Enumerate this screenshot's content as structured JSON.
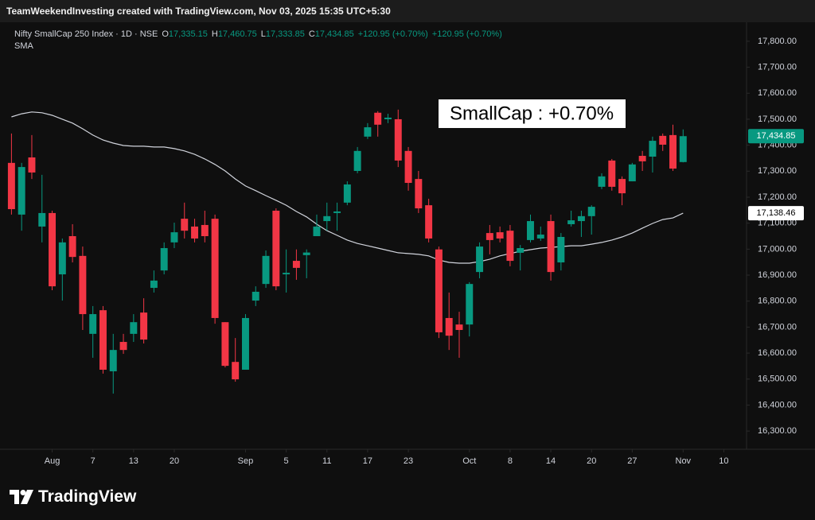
{
  "header": "TeamWeekendInvesting created with TradingView.com, Nov 03, 2025 15:35 UTC+5:30",
  "chart_data": {
    "type": "candlestick",
    "symbol": "Nifty SmallCap 250 Index · 1D · NSE",
    "legend_values": [
      {
        "key": "O",
        "value": "17,335.15"
      },
      {
        "key": "H",
        "value": "17,460.75"
      },
      {
        "key": "L",
        "value": "17,333.85"
      },
      {
        "key": "C",
        "value": "17,434.85"
      }
    ],
    "change": "+120.95 (+0.70%)",
    "indicator": "SMA",
    "annotation": "SmallCap : +0.70%",
    "up_color": "#089981",
    "down_color": "#f23645",
    "open": [
      17332,
      17133,
      17353,
      17087,
      17139,
      16903,
      17050,
      16974,
      16674,
      16765,
      16530,
      16643,
      16674,
      16756,
      16851,
      16918,
      17026,
      17117,
      17087,
      17093,
      17117,
      16719,
      16566,
      16536,
      16802,
      16866,
      17148,
      16903,
      16955,
      16977,
      17050,
      17108,
      17139,
      17179,
      17301,
      17433,
      17525,
      17500,
      17500,
      17378,
      17270,
      17169,
      16999,
      16735,
      16710,
      16710,
      16912,
      17062,
      17065,
      17071,
      16986,
      17035,
      17041,
      17108,
      16949,
      17096,
      17108,
      17127,
      17240,
      17341,
      17270,
      17261,
      17359,
      17356,
      17436,
      17439,
      17335.15
    ],
    "high": [
      17445,
      17332,
      17439,
      17286,
      17148,
      17041,
      17096,
      17010,
      16781,
      16781,
      16674,
      16674,
      16750,
      16811,
      16918,
      17026,
      17102,
      17179,
      17117,
      17148,
      17133,
      16719,
      16658,
      16750,
      16857,
      16995,
      17157,
      16999,
      16999,
      16999,
      17133,
      17179,
      17179,
      17261,
      17393,
      17485,
      17531,
      17521,
      17537,
      17393,
      17301,
      17194,
      17010,
      16833,
      16759,
      16873,
      17026,
      17093,
      17087,
      17093,
      17016,
      17133,
      17087,
      17133,
      17062,
      17148,
      17148,
      17169,
      17292,
      17347,
      17280,
      17332,
      17378,
      17433,
      17445,
      17479,
      17460.75
    ],
    "low": [
      17133,
      17071,
      17270,
      17026,
      16842,
      16802,
      16949,
      16689,
      16582,
      16521,
      16444,
      16597,
      16643,
      16637,
      16833,
      16903,
      17004,
      17041,
      17026,
      17026,
      16713,
      16545,
      16490,
      16536,
      16781,
      16851,
      16842,
      16833,
      16882,
      16888,
      17050,
      17071,
      17071,
      17169,
      17292,
      17424,
      17433,
      17485,
      17316,
      17225,
      17139,
      17026,
      16658,
      16612,
      16582,
      16664,
      16888,
      16980,
      17026,
      16934,
      16918,
      17026,
      17032,
      16879,
      16918,
      17087,
      17047,
      17056,
      17231,
      17225,
      17169,
      17261,
      17301,
      17295,
      17378,
      17301,
      17333.85
    ],
    "close": [
      17154,
      17316,
      17295,
      17139,
      16857,
      17026,
      16970,
      16750,
      16750,
      16536,
      16612,
      16612,
      16719,
      16652,
      16879,
      17004,
      17065,
      17071,
      17041,
      17050,
      16735,
      16551,
      16499,
      16735,
      16836,
      16974,
      16857,
      16909,
      16928,
      16987,
      17087,
      17127,
      17145,
      17249,
      17378,
      17469,
      17479,
      17506,
      17341,
      17255,
      17157,
      17041,
      16680,
      16667,
      16689,
      16866,
      17010,
      17035,
      17041,
      16955,
      17004,
      17108,
      17056,
      16912,
      17047,
      17111,
      17127,
      17163,
      17280,
      17240,
      17215,
      17326,
      17338,
      17417,
      17402,
      17310,
      17434.85
    ],
    "close_label": "17,434.85",
    "sma": {
      "color": "#d1d4dc",
      "values": [
        17509,
        17521,
        17528,
        17525,
        17515,
        17500,
        17485,
        17463,
        17439,
        17420,
        17408,
        17399,
        17396,
        17396,
        17393,
        17393,
        17387,
        17378,
        17365,
        17347,
        17326,
        17301,
        17270,
        17243,
        17225,
        17206,
        17188,
        17169,
        17145,
        17124,
        17096,
        17071,
        17053,
        17035,
        17022,
        17013,
        17004,
        16995,
        16986,
        16983,
        16980,
        16974,
        16958,
        16949,
        16946,
        16946,
        16952,
        16961,
        16974,
        16983,
        16992,
        16998,
        17004,
        17007,
        17010,
        17013,
        17013,
        17019,
        17026,
        17035,
        17047,
        17062,
        17081,
        17099,
        17114,
        17120,
        17138.46
      ],
      "last_label": "17,138.46"
    },
    "xlim": [
      -0.5,
      72
    ],
    "xticks": [
      {
        "value": 4,
        "label": "Aug"
      },
      {
        "value": 8,
        "label": "7"
      },
      {
        "value": 12,
        "label": "13"
      },
      {
        "value": 16,
        "label": "20"
      },
      {
        "value": 23,
        "label": "Sep"
      },
      {
        "value": 27,
        "label": "5"
      },
      {
        "value": 31,
        "label": "11"
      },
      {
        "value": 35,
        "label": "17"
      },
      {
        "value": 39,
        "label": "23"
      },
      {
        "value": 45,
        "label": "Oct"
      },
      {
        "value": 49,
        "label": "8"
      },
      {
        "value": 53,
        "label": "14"
      },
      {
        "value": 57,
        "label": "20"
      },
      {
        "value": 61,
        "label": "27"
      },
      {
        "value": 66,
        "label": "Nov"
      },
      {
        "value": 70,
        "label": "10"
      }
    ],
    "ylim": [
      16230,
      17867
    ],
    "yticks": [
      {
        "value": 16300,
        "label": "16,300.00"
      },
      {
        "value": 16400,
        "label": "16,400.00"
      },
      {
        "value": 16500,
        "label": "16,500.00"
      },
      {
        "value": 16600,
        "label": "16,600.00"
      },
      {
        "value": 16700,
        "label": "16,700.00"
      },
      {
        "value": 16800,
        "label": "16,800.00"
      },
      {
        "value": 16900,
        "label": "16,900.00"
      },
      {
        "value": 17000,
        "label": "17,000.00"
      },
      {
        "value": 17100,
        "label": "17,100.00"
      },
      {
        "value": 17200,
        "label": "17,200.00"
      },
      {
        "value": 17300,
        "label": "17,300.00"
      },
      {
        "value": 17400,
        "label": "17,400.00"
      },
      {
        "value": 17500,
        "label": "17,500.00"
      },
      {
        "value": 17600,
        "label": "17,600.00"
      },
      {
        "value": 17700,
        "label": "17,700.00"
      },
      {
        "value": 17800,
        "label": "17,800.00"
      }
    ],
    "grid": false
  },
  "branding": "TradingView"
}
